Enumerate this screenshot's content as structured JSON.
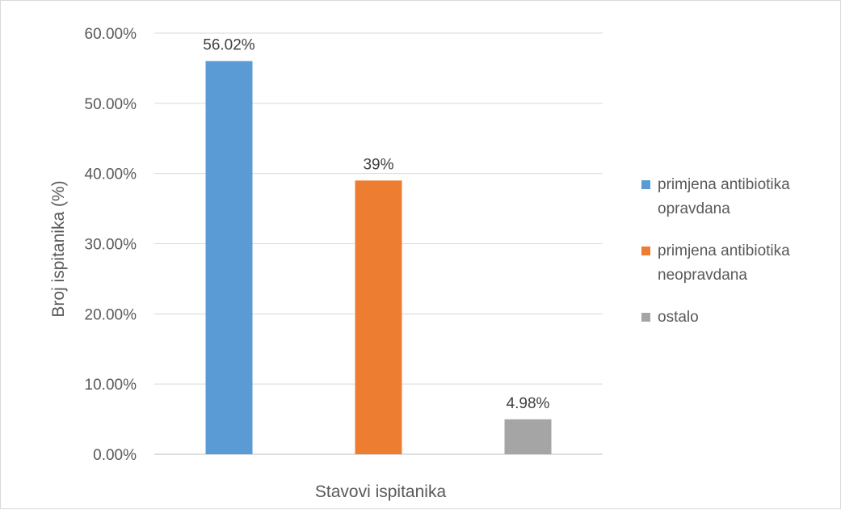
{
  "chart_data": {
    "type": "bar",
    "title": "",
    "xlabel": "Stavovi ispitanika",
    "ylabel": "Broj ispitanika (%)",
    "ylim": [
      0,
      60
    ],
    "yticks": [
      "0.00%",
      "10.00%",
      "20.00%",
      "30.00%",
      "40.00%",
      "50.00%",
      "60.00%"
    ],
    "grid": true,
    "legend_position": "right",
    "series": [
      {
        "name": "primjena antibiotika opravdana",
        "legend_lines": [
          "primjena antibiotika",
          "opravdana"
        ],
        "value": 56.02,
        "label": "56.02%",
        "color": "#5b9bd5"
      },
      {
        "name": "primjena antibiotika neopravdana",
        "legend_lines": [
          "primjena antibiotika",
          "neopravdana"
        ],
        "value": 39,
        "label": "39%",
        "color": "#ed7d31"
      },
      {
        "name": "ostalo",
        "legend_lines": [
          "ostalo"
        ],
        "value": 4.98,
        "label": "4.98%",
        "color": "#a5a5a5"
      }
    ]
  }
}
